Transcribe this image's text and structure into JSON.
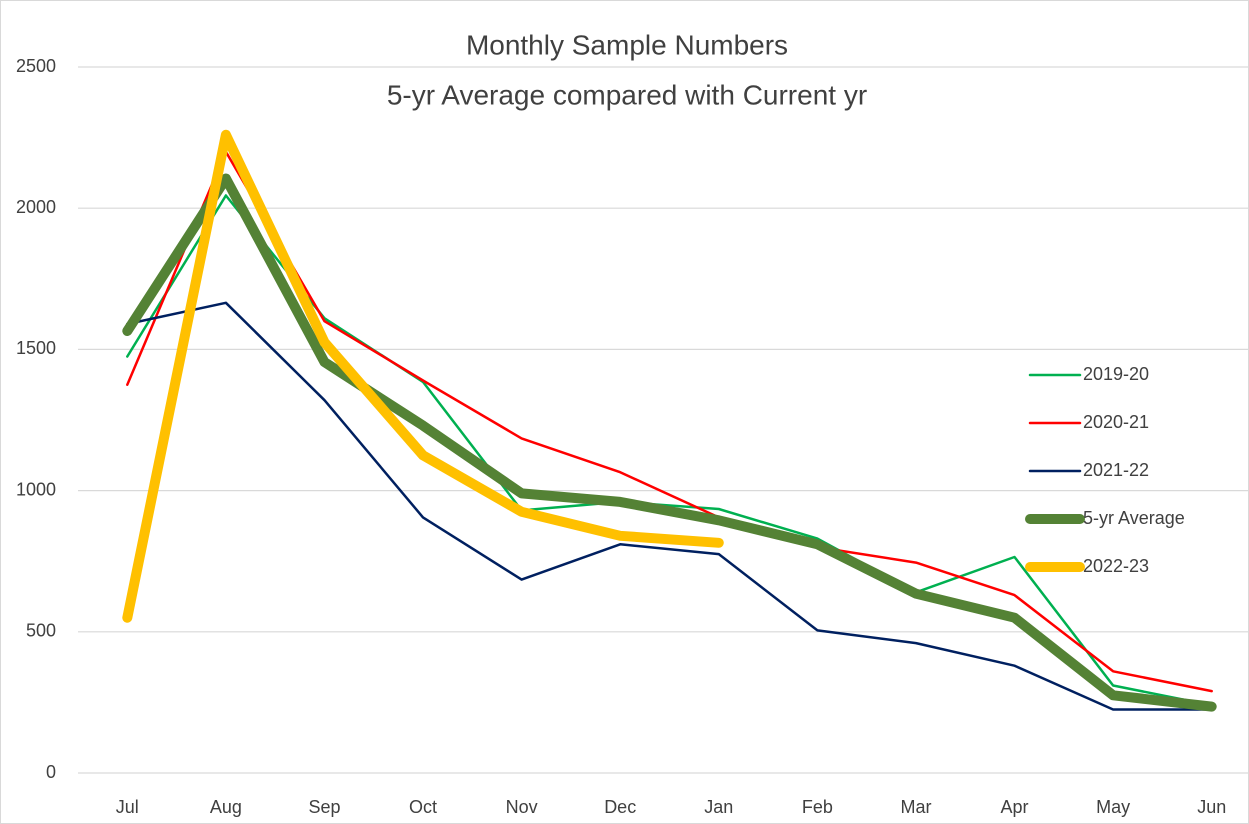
{
  "chart_data": {
    "type": "line",
    "title": "Monthly Sample Numbers",
    "subtitle": "5-yr Average compared with Current yr",
    "categories": [
      "Jul",
      "Aug",
      "Sep",
      "Oct",
      "Nov",
      "Dec",
      "Jan",
      "Feb",
      "Mar",
      "Apr",
      "May",
      "Jun"
    ],
    "ylim": [
      0,
      2500
    ],
    "yticks": [
      0,
      500,
      1000,
      1500,
      2000,
      2500
    ],
    "grid": true,
    "legend": "right",
    "series": [
      {
        "name": "2019-20",
        "color": "#00b050",
        "line_width": 2.5,
        "values": [
          1475,
          2045,
          1610,
          1385,
          930,
          960,
          935,
          830,
          640,
          765,
          310,
          240
        ]
      },
      {
        "name": "2020-21",
        "color": "#ff0000",
        "line_width": 2.5,
        "values": [
          1375,
          2200,
          1600,
          1390,
          1185,
          1065,
          905,
          800,
          745,
          630,
          360,
          290
        ]
      },
      {
        "name": "2021-22",
        "color": "#002060",
        "line_width": 2.5,
        "values": [
          1590,
          1665,
          1320,
          905,
          685,
          810,
          775,
          505,
          460,
          380,
          225,
          225
        ]
      },
      {
        "name": "5-yr Average",
        "color": "#548235",
        "line_width": 10,
        "values": [
          1565,
          2105,
          1455,
          1230,
          990,
          960,
          895,
          810,
          635,
          550,
          275,
          235
        ]
      },
      {
        "name": "2022-23",
        "color": "#ffc000",
        "line_width": 10,
        "values": [
          550,
          2260,
          1525,
          1125,
          925,
          840,
          815,
          null,
          null,
          null,
          null,
          null
        ]
      }
    ]
  }
}
